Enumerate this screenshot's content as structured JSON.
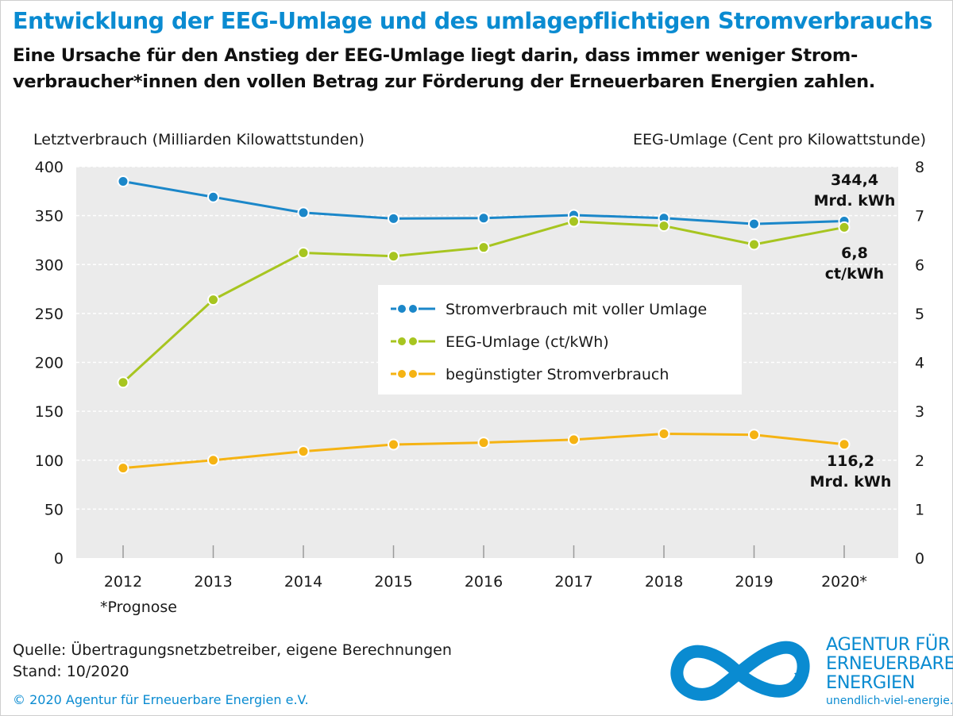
{
  "title": "Entwicklung der EEG-Umlage und des umlagepflichtigen Stromverbrauchs",
  "subtitle": "Eine Ursache für den Anstieg der EEG-Umlage liegt darin, dass immer weniger Strom-verbraucher*innen den vollen Betrag zur Förderung der Erneuerbaren Energien zahlen.",
  "footer": {
    "source": "Quelle: Übertragungsnetzbetreiber, eigene Berechnungen",
    "date": "Stand: 10/2020",
    "copyright": "© 2020 Agentur für Erneuerbare Energien e.V.",
    "footnote": "*Prognose"
  },
  "logo": {
    "lines": [
      "AGENTUR FÜR",
      "ERNEUERBARE",
      "ENERGIEN"
    ],
    "url": "unendlich-viel-energie.de",
    "icon": "infinity-icon"
  },
  "colors": {
    "accent": "#0a8bd1",
    "blue": "#1b87c9",
    "green": "#a7c520",
    "orange": "#f5b313",
    "plot_bg": "#ebebeb"
  },
  "chart_data": {
    "type": "line",
    "categories": [
      "2012",
      "2013",
      "2014",
      "2015",
      "2016",
      "2017",
      "2018",
      "2019",
      "2020*"
    ],
    "ylabel_left": "Letztverbrauch (Milliarden Kilowattstunden)",
    "ylabel_right": "EEG-Umlage (Cent pro Kilowattstunde)",
    "ylim_left": [
      0,
      400
    ],
    "yticks_left": [
      "0",
      "50",
      "100",
      "150",
      "200",
      "250",
      "300",
      "350",
      "400"
    ],
    "ylim_right": [
      0,
      8
    ],
    "yticks_right": [
      "0",
      "1",
      "2",
      "3",
      "4",
      "5",
      "6",
      "7",
      "8"
    ],
    "grid": true,
    "legend_position": "center-right",
    "series": [
      {
        "name": "Stromverbrauch mit voller Umlage",
        "axis": "left",
        "color": "#1b87c9",
        "values": [
          385,
          369,
          353,
          347,
          347.5,
          350.5,
          347.5,
          341.5,
          344.4
        ]
      },
      {
        "name": "EEG-Umlage (ct/kWh)",
        "axis": "right",
        "color": "#a7c520",
        "values": [
          3.59,
          5.28,
          6.24,
          6.17,
          6.35,
          6.88,
          6.79,
          6.41,
          6.76
        ]
      },
      {
        "name": "begünstigter Stromverbrauch",
        "axis": "left",
        "color": "#f5b313",
        "values": [
          92,
          100,
          109,
          116,
          118,
          121,
          127,
          126,
          116.2
        ]
      }
    ],
    "annotations": [
      {
        "series": 0,
        "index": 8,
        "lines": [
          "344,4",
          "Mrd. kWh"
        ]
      },
      {
        "series": 1,
        "index": 8,
        "lines": [
          "6,8",
          "ct/kWh"
        ]
      },
      {
        "series": 2,
        "index": 8,
        "lines": [
          "116,2",
          "Mrd. kWh"
        ]
      }
    ]
  }
}
